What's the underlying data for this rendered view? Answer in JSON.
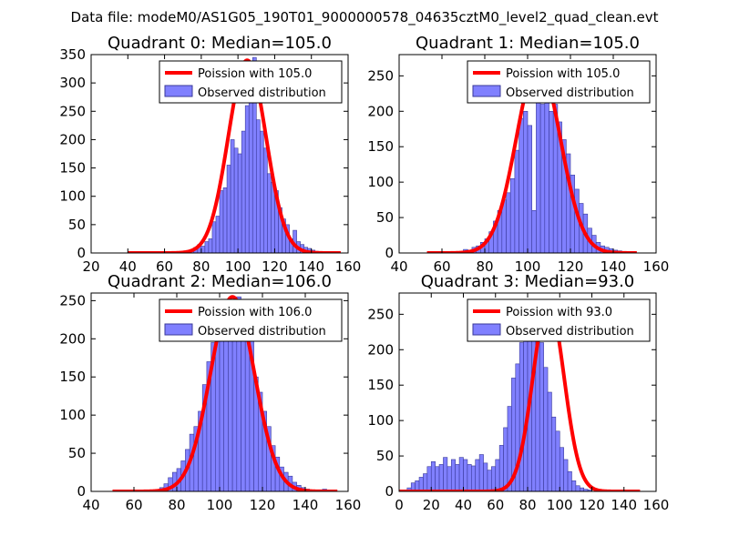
{
  "figure_title": "Data file: modeM0/AS1G05_190T01_9000000578_04635cztM0_level2_quad_clean.evt",
  "colors": {
    "bar_fill": "#8080ff",
    "bar_edge": "#3a3a99",
    "poisson_line": "#ff0000",
    "legend_edge": "#000000"
  },
  "chart_data": [
    {
      "type": "bar",
      "title": "Quadrant 0: Median=105.0",
      "xlim": [
        20,
        160
      ],
      "ylim": [
        0,
        350
      ],
      "xticks": [
        20,
        40,
        60,
        80,
        100,
        120,
        140,
        160
      ],
      "yticks": [
        0,
        50,
        100,
        150,
        200,
        250,
        300,
        350
      ],
      "legend": {
        "placement": "top-right",
        "entries": [
          "Poission with 105.0",
          "Observed distribution"
        ]
      },
      "poisson_lambda": 105,
      "poisson_peak": 340,
      "poisson_x_range": [
        40,
        156
      ],
      "bin_width": 2,
      "bins_start": 72,
      "values": [
        2,
        4,
        10,
        15,
        12,
        20,
        25,
        55,
        65,
        110,
        115,
        155,
        200,
        185,
        175,
        215,
        260,
        280,
        345,
        235,
        215,
        185,
        140,
        125,
        110,
        80,
        60,
        50,
        25,
        40,
        20,
        15,
        10,
        8,
        5,
        3
      ]
    },
    {
      "type": "bar",
      "title": "Quadrant 1: Median=105.0",
      "xlim": [
        40,
        160
      ],
      "ylim": [
        0,
        280
      ],
      "xticks": [
        40,
        60,
        80,
        100,
        120,
        140,
        160
      ],
      "yticks": [
        0,
        50,
        100,
        150,
        200,
        250
      ],
      "legend": {
        "placement": "top-right",
        "entries": [
          "Poission with 105.0",
          "Observed distribution"
        ]
      },
      "poisson_lambda": 105,
      "poisson_peak": 268,
      "poisson_x_range": [
        53,
        151
      ],
      "bin_width": 2,
      "bins_start": 70,
      "values": [
        5,
        4,
        8,
        10,
        15,
        20,
        30,
        45,
        60,
        75,
        85,
        105,
        145,
        190,
        200,
        180,
        60,
        230,
        210,
        245,
        200,
        210,
        185,
        160,
        140,
        110,
        90,
        70,
        55,
        35,
        25,
        15,
        10,
        8,
        6,
        4,
        3
      ]
    },
    {
      "type": "bar",
      "title": "Quadrant 2: Median=106.0",
      "xlim": [
        40,
        160
      ],
      "ylim": [
        0,
        260
      ],
      "xticks": [
        40,
        60,
        80,
        100,
        120,
        140,
        160
      ],
      "yticks": [
        0,
        50,
        100,
        150,
        200,
        250
      ],
      "legend": {
        "placement": "top-right",
        "entries": [
          "Poission with 106.0",
          "Observed distribution"
        ]
      },
      "poisson_lambda": 106,
      "poisson_peak": 255,
      "poisson_x_range": [
        50,
        155
      ],
      "bin_width": 2,
      "bins_start": 72,
      "values": [
        5,
        10,
        18,
        25,
        30,
        40,
        55,
        75,
        85,
        105,
        140,
        170,
        195,
        215,
        230,
        225,
        240,
        200,
        255,
        230,
        235,
        200,
        150,
        130,
        105,
        85,
        60,
        45,
        32,
        25,
        20,
        12,
        8,
        5,
        3,
        2,
        1,
        1,
        3,
        2
      ]
    },
    {
      "type": "bar",
      "title": "Quadrant 3: Median=93.0",
      "xlim": [
        0,
        160
      ],
      "ylim": [
        0,
        280
      ],
      "xticks": [
        0,
        20,
        40,
        60,
        80,
        100,
        120,
        140,
        160
      ],
      "yticks": [
        0,
        50,
        100,
        150,
        200,
        250
      ],
      "legend": {
        "placement": "top-right",
        "entries": [
          "Poission with 93.0",
          "Observed distribution"
        ]
      },
      "poisson_lambda": 93,
      "poisson_peak": 268,
      "poisson_x_range": [
        0,
        150
      ],
      "bin_width": 2.5,
      "bins_start": 5,
      "values": [
        5,
        12,
        15,
        20,
        25,
        35,
        42,
        35,
        38,
        48,
        35,
        45,
        38,
        48,
        45,
        38,
        36,
        45,
        52,
        40,
        30,
        35,
        45,
        65,
        90,
        120,
        160,
        180,
        210,
        225,
        255,
        260,
        248,
        210,
        175,
        140,
        105,
        85,
        62,
        45,
        28,
        15,
        8,
        5,
        3,
        2
      ]
    }
  ]
}
